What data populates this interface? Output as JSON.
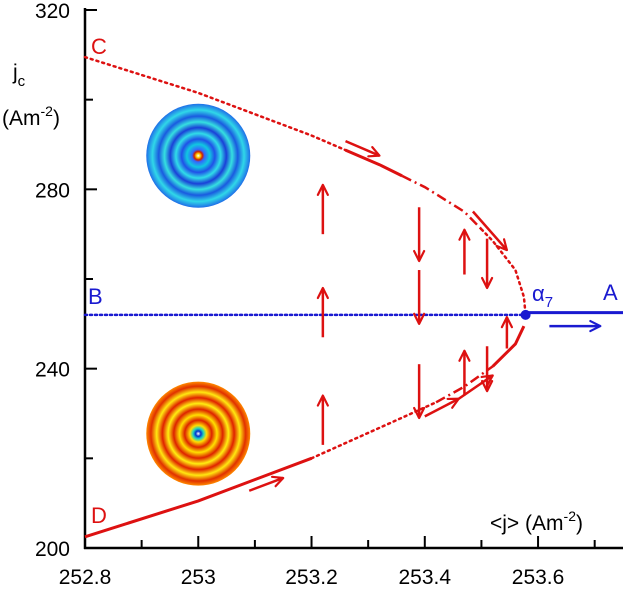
{
  "chart_data": {
    "type": "line",
    "xlabel": "<j> (Am-2)",
    "ylabel": "jc (Am-2)",
    "xlim": [
      252.8,
      253.75
    ],
    "ylim": [
      200,
      320
    ],
    "x_ticks": [
      "252.8",
      "253",
      "253.2",
      "253.4",
      "253.6"
    ],
    "y_ticks": [
      "200",
      "240",
      "280",
      "320"
    ],
    "ylabel_lines": [
      "j",
      "c",
      "(Am",
      "-2",
      ")"
    ],
    "xlabel_parts": [
      "<j> (Am",
      "-2",
      ")"
    ],
    "colors": {
      "branch": "#dd1111",
      "baseline": "#1a1ad0"
    },
    "series": [
      {
        "name": "upper-branch",
        "label_start": "C",
        "color": "#dd1111",
        "points": [
          [
            252.8,
            309.5
          ],
          [
            253.0,
            301.5
          ],
          [
            253.2,
            292.0
          ],
          [
            253.32,
            285.5
          ],
          [
            253.4,
            280.5
          ],
          [
            253.47,
            275.0
          ],
          [
            253.52,
            268.5
          ],
          [
            253.56,
            262.0
          ],
          [
            253.575,
            256.0
          ],
          [
            253.578,
            252.0
          ]
        ]
      },
      {
        "name": "lower-branch",
        "label_start": "D",
        "color": "#dd1111",
        "points": [
          [
            253.578,
            252.0
          ],
          [
            253.56,
            245.5
          ],
          [
            253.52,
            240.5
          ],
          [
            253.47,
            236.0
          ],
          [
            253.42,
            232.5
          ],
          [
            253.35,
            228.5
          ],
          [
            253.2,
            220.0
          ],
          [
            253.0,
            210.5
          ],
          [
            252.8,
            202.5
          ]
        ]
      },
      {
        "name": "baseline-B",
        "label_start": "B",
        "color": "#1a1ad0",
        "points": [
          [
            252.8,
            252.0
          ],
          [
            253.578,
            252.0
          ]
        ]
      },
      {
        "name": "baseline-A",
        "label_end": "A",
        "color": "#1a1ad0",
        "points": [
          [
            253.578,
            252.5
          ],
          [
            253.75,
            252.5
          ]
        ]
      }
    ],
    "bifurcation_point": {
      "label": "α",
      "subscript": "7",
      "x": 253.578,
      "y": 252.0
    },
    "annotations": {
      "vertical_arrows": [
        {
          "x": 253.22,
          "y_from": 270,
          "y_to": 281,
          "dir": "up"
        },
        {
          "x": 253.22,
          "y_from": 247,
          "y_to": 258,
          "dir": "up"
        },
        {
          "x": 253.22,
          "y_from": 223,
          "y_to": 234,
          "dir": "up"
        },
        {
          "x": 253.39,
          "y_from": 276,
          "y_to": 264,
          "dir": "down"
        },
        {
          "x": 253.39,
          "y_from": 262,
          "y_to": 250,
          "dir": "down"
        },
        {
          "x": 253.39,
          "y_from": 241,
          "y_to": 229,
          "dir": "down"
        },
        {
          "x": 253.47,
          "y_from": 261,
          "y_to": 271,
          "dir": "up"
        },
        {
          "x": 253.47,
          "y_from": 234,
          "y_to": 244,
          "dir": "up"
        },
        {
          "x": 253.51,
          "y_from": 269,
          "y_to": 258,
          "dir": "down"
        },
        {
          "x": 253.51,
          "y_from": 245,
          "y_to": 235,
          "dir": "down"
        },
        {
          "x": 253.545,
          "y_from": 244.5,
          "y_to": 251.5,
          "dir": "up"
        }
      ],
      "tangent_arrows": [
        {
          "branch": "upper-branch",
          "x": 253.29,
          "dir": "right"
        },
        {
          "branch": "upper-branch",
          "x": 253.515,
          "dir": "right"
        },
        {
          "branch": "lower-branch",
          "x": 253.12,
          "dir": "right"
        },
        {
          "branch": "lower-branch",
          "x": 253.43,
          "dir": "right"
        },
        {
          "branch": "lower-branch",
          "x": 253.49,
          "dir": "right"
        }
      ],
      "blue_arrow": {
        "x_from": 253.62,
        "x_to": 253.71,
        "y": 249.5
      }
    },
    "insets": [
      {
        "name": "blue-ring-pattern",
        "x": 253.0,
        "y": 287.5,
        "style": "blue-cyan"
      },
      {
        "name": "red-ring-pattern",
        "x": 253.0,
        "y": 225.5,
        "style": "red-yellow"
      }
    ]
  }
}
